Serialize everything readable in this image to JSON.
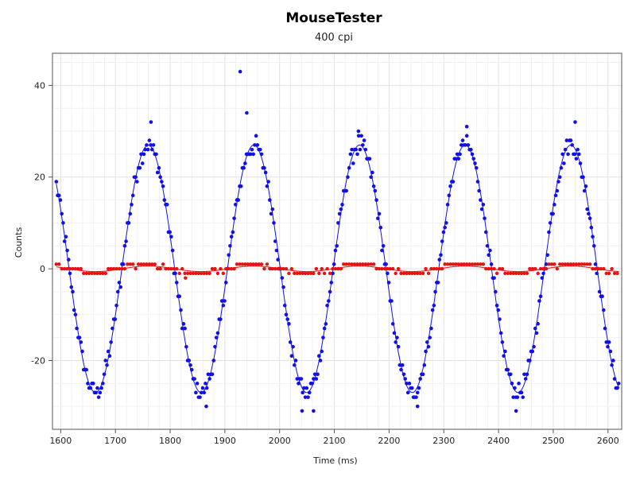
{
  "chart_data": {
    "type": "scatter",
    "title": "MouseTester",
    "subtitle": "400 cpi",
    "xlabel": "Time (ms)",
    "ylabel": "Counts",
    "xlim": [
      1585,
      2625
    ],
    "ylim": [
      -35,
      47
    ],
    "xticks": [
      1600,
      1700,
      1800,
      1900,
      2000,
      2100,
      2200,
      2300,
      2400,
      2500,
      2600
    ],
    "yticks": [
      -20,
      0,
      20,
      40
    ],
    "grid": true,
    "series": [
      {
        "color": "#1010e8",
        "amplitude": 27,
        "period_ms": 193,
        "peak_times": [
          1760,
          1953,
          2146,
          2339,
          2532
        ],
        "trough_times": [
          1664,
          1857,
          2050,
          2243,
          2436
        ],
        "sample_interval_ms": 2.5,
        "outliers": [
          {
            "x": 1928,
            "y": 43
          },
          {
            "x": 1940,
            "y": 34
          },
          {
            "x": 1765,
            "y": 32
          },
          {
            "x": 2041,
            "y": -31
          },
          {
            "x": 2062,
            "y": -31
          },
          {
            "x": 1866,
            "y": -30
          },
          {
            "x": 2252,
            "y": -30
          },
          {
            "x": 2432,
            "y": -31
          },
          {
            "x": 2144,
            "y": 30
          },
          {
            "x": 2342,
            "y": 31
          },
          {
            "x": 2540,
            "y": 32
          }
        ]
      },
      {
        "color": "#e81010",
        "values_range": [
          -2,
          1
        ],
        "sample_interval_ms": 5
      }
    ]
  }
}
